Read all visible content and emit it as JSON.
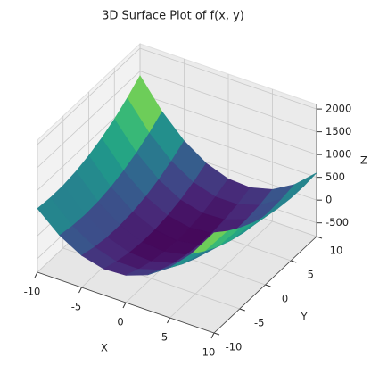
{
  "chart_data": {
    "type": "surface",
    "title": "3D Surface Plot of f(x, y)",
    "xlabel": "X",
    "ylabel": "Y",
    "zlabel": "Z",
    "colormap": "viridis",
    "x": [
      -10,
      -7.5,
      -5,
      -2.5,
      0,
      2.5,
      5,
      7.5,
      10
    ],
    "y": [
      -10,
      -7.5,
      -5,
      -2.5,
      0,
      2.5,
      5,
      7.5,
      10
    ],
    "z": [
      [
        600,
        175,
        -100,
        -225,
        -200,
        -25,
        300,
        775,
        1400
      ],
      [
        568.75,
        118.75,
        -181.25,
        -331.25,
        -331.25,
        -181.25,
        118.75,
        568.75,
        1168.75
      ],
      [
        575,
        100,
        -225,
        -400,
        -425,
        -300,
        -25,
        400,
        975
      ],
      [
        618.75,
        118.75,
        -231.25,
        -431.25,
        -481.25,
        -381.25,
        -131.25,
        268.75,
        818.75
      ],
      [
        700,
        175,
        -200,
        -425,
        -500,
        -425,
        -200,
        175,
        700
      ],
      [
        818.75,
        268.75,
        -131.25,
        -381.25,
        -481.25,
        -431.25,
        -231.25,
        118.75,
        618.75
      ],
      [
        975,
        400,
        -25,
        -300,
        -425,
        -400,
        -225,
        100,
        575
      ],
      [
        1168.75,
        568.75,
        118.75,
        -181.25,
        -331.25,
        -331.25,
        -181.25,
        118.75,
        568.75
      ],
      [
        1400,
        775,
        300,
        -25,
        -200,
        -225,
        -100,
        175,
        600
      ]
    ],
    "xlim": [
      -10,
      10
    ],
    "ylim": [
      -10,
      10
    ],
    "zlim": [
      -800,
      2100
    ],
    "xticks": [
      -10,
      -5,
      0,
      5,
      10
    ],
    "yticks": [
      -10,
      -5,
      0,
      5,
      10
    ],
    "zticks": [
      -500,
      0,
      500,
      1000,
      1500,
      2000
    ],
    "grid": true
  }
}
